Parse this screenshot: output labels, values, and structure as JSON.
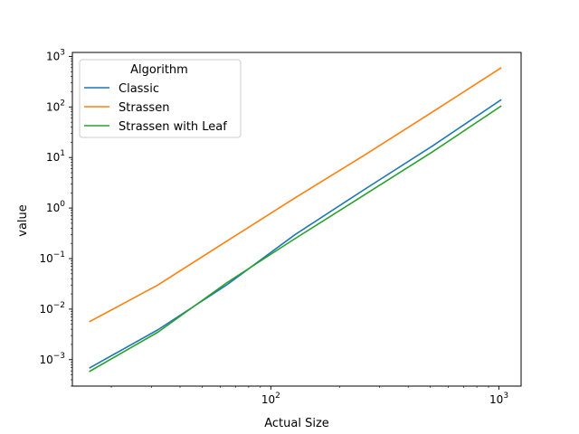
{
  "chart_data": {
    "type": "line",
    "xlabel": "Actual Size",
    "ylabel": "value",
    "xscale": "log",
    "yscale": "log",
    "xlim": [
      13.5,
      1250
    ],
    "ylim": [
      0.0003,
      1200
    ],
    "grid": false,
    "legend": {
      "title": "Algorithm",
      "placement": "top-left"
    },
    "x_ticks": [
      {
        "value": 100,
        "base": "10",
        "exp": "2"
      },
      {
        "value": 1000,
        "base": "10",
        "exp": "3"
      }
    ],
    "y_ticks": [
      {
        "value": 0.001,
        "base": "10",
        "exp": "−3"
      },
      {
        "value": 0.01,
        "base": "10",
        "exp": "−2"
      },
      {
        "value": 0.1,
        "base": "10",
        "exp": "−1"
      },
      {
        "value": 1,
        "base": "10",
        "exp": "0"
      },
      {
        "value": 10,
        "base": "10",
        "exp": "1"
      },
      {
        "value": 100,
        "base": "10",
        "exp": "2"
      },
      {
        "value": 1000,
        "base": "10",
        "exp": "3"
      }
    ],
    "x": [
      16,
      32,
      64,
      128,
      256,
      512,
      1024
    ],
    "series": [
      {
        "name": "Classic",
        "color": "#1f77b4",
        "values": [
          0.00068,
          0.0039,
          0.03,
          0.3,
          2.3,
          17,
          140
        ]
      },
      {
        "name": "Strassen",
        "color": "#ff7f0e",
        "values": [
          0.0056,
          0.03,
          0.22,
          1.6,
          11,
          80,
          600
        ]
      },
      {
        "name": "Strassen with Leaf",
        "color": "#2ca02c",
        "values": [
          0.00058,
          0.0035,
          0.033,
          0.25,
          1.8,
          13,
          105
        ]
      }
    ]
  }
}
